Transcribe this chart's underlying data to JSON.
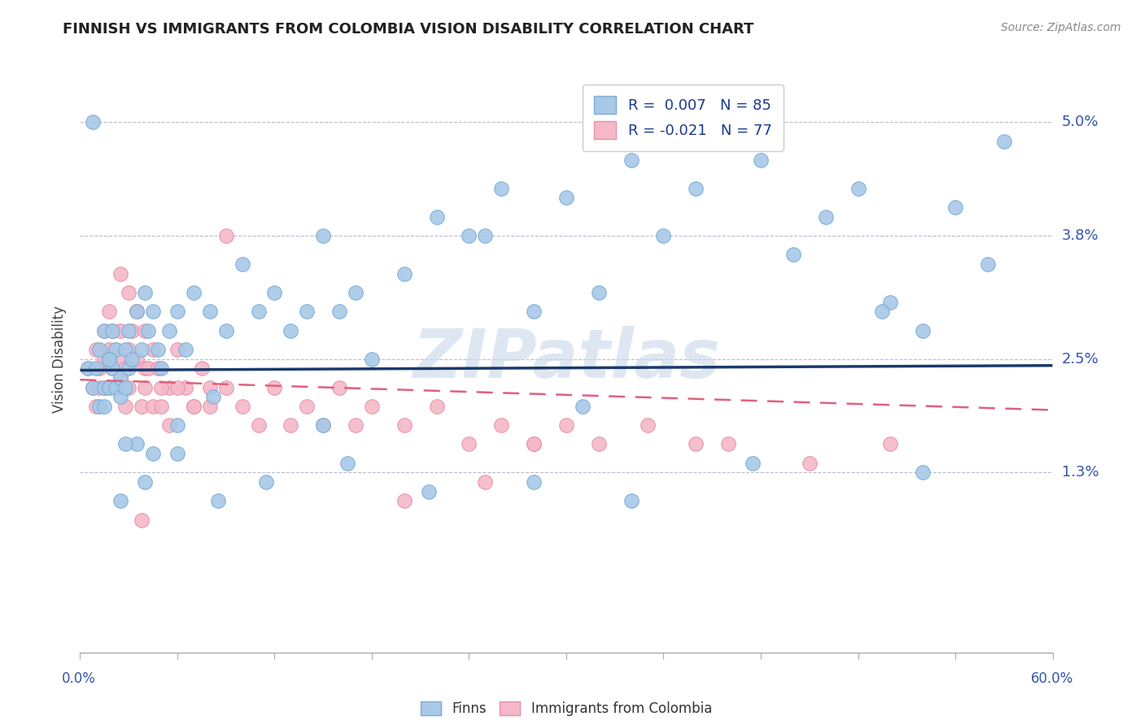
{
  "title": "FINNISH VS IMMIGRANTS FROM COLOMBIA VISION DISABILITY CORRELATION CHART",
  "source_text": "Source: ZipAtlas.com",
  "ylabel": "Vision Disability",
  "yticks": [
    0.0,
    0.013,
    0.025,
    0.038,
    0.05
  ],
  "ytick_labels": [
    "",
    "1.3%",
    "2.5%",
    "3.8%",
    "5.0%"
  ],
  "xmin": 0.0,
  "xmax": 0.6,
  "ymin": -0.006,
  "ymax": 0.056,
  "blue_color": "#a8c8e8",
  "blue_edge_color": "#7aadd4",
  "pink_color": "#f4b8c8",
  "pink_edge_color": "#e890a8",
  "trend_blue_color": "#1a3a6b",
  "trend_pink_color": "#e06080",
  "watermark": "ZIPatlas",
  "finns_x": [
    0.005,
    0.008,
    0.01,
    0.012,
    0.012,
    0.015,
    0.015,
    0.015,
    0.018,
    0.018,
    0.02,
    0.02,
    0.022,
    0.022,
    0.025,
    0.025,
    0.028,
    0.028,
    0.03,
    0.03,
    0.032,
    0.035,
    0.038,
    0.04,
    0.042,
    0.045,
    0.048,
    0.05,
    0.055,
    0.06,
    0.065,
    0.07,
    0.08,
    0.09,
    0.1,
    0.11,
    0.12,
    0.13,
    0.14,
    0.15,
    0.16,
    0.17,
    0.18,
    0.2,
    0.22,
    0.24,
    0.26,
    0.28,
    0.3,
    0.32,
    0.34,
    0.36,
    0.38,
    0.4,
    0.42,
    0.44,
    0.46,
    0.48,
    0.5,
    0.52,
    0.54,
    0.56,
    0.57,
    0.31,
    0.25,
    0.15,
    0.082,
    0.06,
    0.045,
    0.035,
    0.025,
    0.04,
    0.06,
    0.085,
    0.115,
    0.165,
    0.215,
    0.28,
    0.34,
    0.415,
    0.52,
    0.028,
    0.018,
    0.008,
    0.495
  ],
  "finns_y": [
    0.024,
    0.022,
    0.024,
    0.02,
    0.026,
    0.022,
    0.028,
    0.02,
    0.025,
    0.022,
    0.028,
    0.024,
    0.022,
    0.026,
    0.023,
    0.021,
    0.026,
    0.022,
    0.028,
    0.024,
    0.025,
    0.03,
    0.026,
    0.032,
    0.028,
    0.03,
    0.026,
    0.024,
    0.028,
    0.03,
    0.026,
    0.032,
    0.03,
    0.028,
    0.035,
    0.03,
    0.032,
    0.028,
    0.03,
    0.038,
    0.03,
    0.032,
    0.025,
    0.034,
    0.04,
    0.038,
    0.043,
    0.03,
    0.042,
    0.032,
    0.046,
    0.038,
    0.043,
    0.05,
    0.046,
    0.036,
    0.04,
    0.043,
    0.031,
    0.028,
    0.041,
    0.035,
    0.048,
    0.02,
    0.038,
    0.018,
    0.021,
    0.018,
    0.015,
    0.016,
    0.01,
    0.012,
    0.015,
    0.01,
    0.012,
    0.014,
    0.011,
    0.012,
    0.01,
    0.014,
    0.013,
    0.016,
    0.025,
    0.05,
    0.03
  ],
  "colombia_x": [
    0.005,
    0.008,
    0.01,
    0.01,
    0.012,
    0.012,
    0.015,
    0.015,
    0.015,
    0.018,
    0.018,
    0.018,
    0.02,
    0.02,
    0.022,
    0.022,
    0.025,
    0.025,
    0.025,
    0.028,
    0.028,
    0.03,
    0.03,
    0.032,
    0.035,
    0.035,
    0.038,
    0.04,
    0.04,
    0.042,
    0.045,
    0.048,
    0.05,
    0.055,
    0.06,
    0.065,
    0.07,
    0.075,
    0.08,
    0.09,
    0.1,
    0.11,
    0.12,
    0.13,
    0.14,
    0.15,
    0.16,
    0.17,
    0.18,
    0.2,
    0.22,
    0.24,
    0.26,
    0.28,
    0.3,
    0.32,
    0.35,
    0.4,
    0.45,
    0.5,
    0.025,
    0.03,
    0.035,
    0.04,
    0.045,
    0.05,
    0.06,
    0.07,
    0.08,
    0.09,
    0.2,
    0.28,
    0.38,
    0.25,
    0.055,
    0.038
  ],
  "colombia_y": [
    0.024,
    0.022,
    0.026,
    0.02,
    0.024,
    0.022,
    0.028,
    0.025,
    0.022,
    0.026,
    0.022,
    0.03,
    0.028,
    0.024,
    0.026,
    0.022,
    0.028,
    0.025,
    0.023,
    0.024,
    0.02,
    0.026,
    0.022,
    0.028,
    0.03,
    0.025,
    0.02,
    0.024,
    0.022,
    0.024,
    0.02,
    0.024,
    0.02,
    0.022,
    0.026,
    0.022,
    0.02,
    0.024,
    0.02,
    0.022,
    0.02,
    0.018,
    0.022,
    0.018,
    0.02,
    0.018,
    0.022,
    0.018,
    0.02,
    0.018,
    0.02,
    0.016,
    0.018,
    0.016,
    0.018,
    0.016,
    0.018,
    0.016,
    0.014,
    0.016,
    0.034,
    0.032,
    0.03,
    0.028,
    0.026,
    0.022,
    0.022,
    0.02,
    0.022,
    0.038,
    0.01,
    0.016,
    0.016,
    0.012,
    0.018,
    0.008
  ],
  "blue_trend_x": [
    0.0,
    0.6
  ],
  "blue_trend_y": [
    0.0238,
    0.0243
  ],
  "pink_trend_x": [
    0.0,
    0.6
  ],
  "pink_trend_y": [
    0.0228,
    0.0196
  ]
}
